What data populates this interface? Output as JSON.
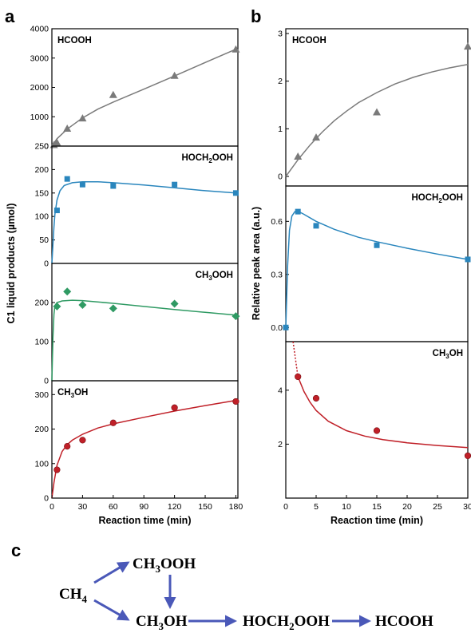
{
  "panel_letters": {
    "a": "a",
    "b": "b",
    "c": "c"
  },
  "colors": {
    "HCOOH": "#7a7a7a",
    "HOCH2OOH": "#2a86bd",
    "CH3OOH": "#2f9a63",
    "CH3OH": "#c02028",
    "arrow": "#4a58b8"
  },
  "chart_data": [
    {
      "type": "scatter",
      "panel": "a",
      "xlabel": "Reaction time (min)",
      "ylabel": "C1 liquid products (µmol)",
      "xlim": [
        0,
        182
      ],
      "xticks": [
        0,
        30,
        60,
        90,
        120,
        150,
        180
      ],
      "subplots": [
        {
          "name": "HCOOH",
          "html_label": "HCOOH",
          "marker": "triangle",
          "ylim": [
            0,
            4000
          ],
          "yticks": [
            0,
            1000,
            2000,
            3000,
            4000
          ],
          "x": [
            2,
            5,
            15,
            30,
            60,
            120,
            180
          ],
          "y": [
            40,
            120,
            600,
            950,
            1750,
            2400,
            3300
          ],
          "fit": [
            [
              0,
              0
            ],
            [
              5,
              250
            ],
            [
              15,
              580
            ],
            [
              30,
              960
            ],
            [
              45,
              1260
            ],
            [
              60,
              1500
            ],
            [
              90,
              1940
            ],
            [
              120,
              2390
            ],
            [
              150,
              2850
            ],
            [
              180,
              3300
            ]
          ]
        },
        {
          "name": "HOCH2OOH",
          "html_label": "HOCH<tspan font-size='8' dy='3'>2</tspan><tspan dy='-3'>OOH</tspan>",
          "marker": "square",
          "ylim": [
            0,
            250
          ],
          "yticks": [
            0,
            50,
            100,
            150,
            200,
            250
          ],
          "x": [
            5,
            15,
            30,
            60,
            120,
            180
          ],
          "y": [
            113,
            180,
            168,
            165,
            168,
            150
          ],
          "fit": [
            [
              0,
              0
            ],
            [
              1,
              40
            ],
            [
              2,
              78
            ],
            [
              3,
              105
            ],
            [
              5,
              135
            ],
            [
              8,
              155
            ],
            [
              12,
              166
            ],
            [
              20,
              172
            ],
            [
              30,
              174
            ],
            [
              45,
              174
            ],
            [
              60,
              172
            ],
            [
              90,
              167
            ],
            [
              120,
              161
            ],
            [
              150,
              155
            ],
            [
              180,
              150
            ]
          ]
        },
        {
          "name": "CH3OOH",
          "html_label": "CH<tspan font-size='8' dy='3'>3</tspan><tspan dy='-3'>OOH</tspan>",
          "marker": "diamond",
          "ylim": [
            0,
            300
          ],
          "yticks": [
            0,
            100,
            200
          ],
          "x": [
            5,
            15,
            30,
            60,
            120,
            180
          ],
          "y": [
            190,
            228,
            194,
            185,
            197,
            165
          ],
          "fit": [
            [
              0,
              0
            ],
            [
              1,
              110
            ],
            [
              2,
              170
            ],
            [
              3,
              192
            ],
            [
              5,
              200
            ],
            [
              10,
              204
            ],
            [
              20,
              206
            ],
            [
              30,
              205
            ],
            [
              60,
              198
            ],
            [
              90,
              190
            ],
            [
              120,
              182
            ],
            [
              150,
              175
            ],
            [
              180,
              168
            ]
          ]
        },
        {
          "name": "CH3OH",
          "html_label": "CH<tspan font-size='8' dy='3'>3</tspan><tspan dy='-3'>OH</tspan>",
          "marker": "circle",
          "ylim": [
            0,
            340
          ],
          "yticks": [
            0,
            100,
            200,
            300
          ],
          "x": [
            5,
            15,
            30,
            60,
            120,
            180
          ],
          "y": [
            82,
            150,
            168,
            218,
            262,
            280
          ],
          "fit": [
            [
              0,
              0
            ],
            [
              2,
              45
            ],
            [
              5,
              95
            ],
            [
              10,
              135
            ],
            [
              15,
              155
            ],
            [
              20,
              168
            ],
            [
              30,
              185
            ],
            [
              45,
              203
            ],
            [
              60,
              215
            ],
            [
              90,
              234
            ],
            [
              120,
              252
            ],
            [
              150,
              268
            ],
            [
              180,
              283
            ]
          ]
        }
      ]
    },
    {
      "type": "scatter",
      "panel": "b",
      "xlabel": "Reaction time (min)",
      "ylabel": "Relative peak area (a.u.)",
      "xlim": [
        0,
        30
      ],
      "xticks": [
        0,
        5,
        10,
        15,
        20,
        25,
        30
      ],
      "subplots": [
        {
          "name": "HCOOH",
          "html_label": "HCOOH",
          "marker": "triangle",
          "ylim": [
            -0.2,
            3.1
          ],
          "yticks": [
            0,
            1,
            2,
            3
          ],
          "x": [
            2,
            5,
            15,
            30
          ],
          "y": [
            0.42,
            0.82,
            1.35,
            2.73
          ],
          "fit": [
            [
              0,
              0
            ],
            [
              2,
              0.35
            ],
            [
              4,
              0.66
            ],
            [
              6,
              0.93
            ],
            [
              8,
              1.17
            ],
            [
              10,
              1.37
            ],
            [
              12,
              1.55
            ],
            [
              15,
              1.76
            ],
            [
              18,
              1.94
            ],
            [
              21,
              2.08
            ],
            [
              24,
              2.19
            ],
            [
              27,
              2.28
            ],
            [
              30,
              2.35
            ]
          ]
        },
        {
          "name": "HOCH2OOH",
          "html_label": "HOCH<tspan font-size='8' dy='3'>2</tspan><tspan dy='-3'>OOH</tspan>",
          "marker": "square",
          "ylim": [
            -0.08,
            0.8
          ],
          "yticks": [
            0.0,
            0.3,
            0.6
          ],
          "ytick_labels": [
            "0.0",
            "0.3",
            "0.6"
          ],
          "x": [
            0,
            2,
            5,
            15,
            30
          ],
          "y": [
            0.0,
            0.655,
            0.575,
            0.465,
            0.385
          ],
          "fit": [
            [
              0,
              0
            ],
            [
              0.3,
              0.35
            ],
            [
              0.6,
              0.55
            ],
            [
              1,
              0.63
            ],
            [
              1.5,
              0.655
            ],
            [
              2,
              0.658
            ],
            [
              3,
              0.64
            ],
            [
              5,
              0.6
            ],
            [
              8,
              0.555
            ],
            [
              12,
              0.51
            ],
            [
              15,
              0.485
            ],
            [
              20,
              0.448
            ],
            [
              25,
              0.415
            ],
            [
              30,
              0.385
            ]
          ]
        },
        {
          "name": "CH3OH",
          "html_label": "CH<tspan font-size='8' dy='3'>3</tspan><tspan dy='-3'>OH</tspan>",
          "marker": "circle",
          "ylim": [
            0,
            5.8
          ],
          "yticks": [
            2,
            4
          ],
          "x": [
            2,
            5,
            15,
            30
          ],
          "y": [
            4.5,
            3.7,
            2.5,
            1.57
          ],
          "fit": [
            [
              2,
              4.5
            ],
            [
              3,
              3.95
            ],
            [
              4,
              3.55
            ],
            [
              5,
              3.25
            ],
            [
              7,
              2.85
            ],
            [
              10,
              2.5
            ],
            [
              13,
              2.3
            ],
            [
              16,
              2.17
            ],
            [
              20,
              2.05
            ],
            [
              25,
              1.95
            ],
            [
              30,
              1.87
            ]
          ],
          "dotted": [
            [
              1.2,
              5.8
            ],
            [
              2,
              4.5
            ]
          ]
        }
      ]
    }
  ],
  "scheme": {
    "CH4": "CH<tspan font-size='13' dy='5'>4</tspan>",
    "CH3OOH": "CH<tspan font-size='13' dy='5'>3</tspan><tspan dy='-5'>OOH</tspan>",
    "CH3OH": "CH<tspan font-size='13' dy='5'>3</tspan><tspan dy='-5'>OH</tspan>",
    "HOCH2OOH": "HOCH<tspan font-size='13' dy='5'>2</tspan><tspan dy='-5'>OOH</tspan>",
    "HCOOH": "HCOOH"
  }
}
